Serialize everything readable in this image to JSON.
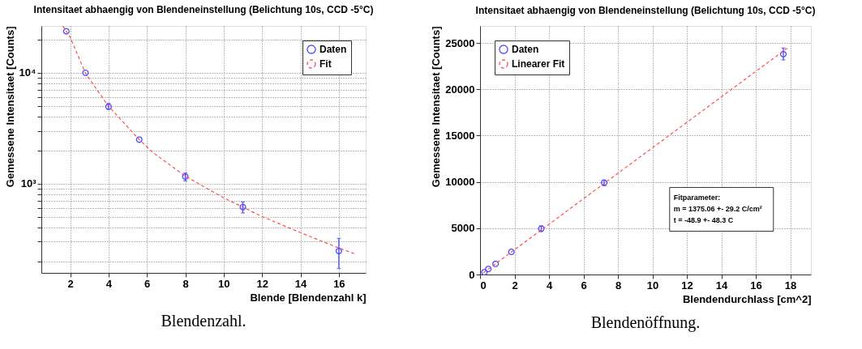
{
  "chart_data": [
    {
      "type": "scatter",
      "title": "Intensitaet abhaengig von Blendeneinstellung (Belichtung 10s, CCD -5°C)",
      "xlabel": "Blende [Blendenzahl k]",
      "ylabel": "Gemessene Intensitaet [Counts]",
      "xlim": [
        0.5,
        17.4
      ],
      "xticks": [
        2,
        4,
        6,
        8,
        10,
        12,
        14,
        16
      ],
      "ylim": [
        157,
        26500
      ],
      "log": "y",
      "yticks": [
        {
          "value": 200,
          "label": null
        },
        {
          "value": 300,
          "label": null
        },
        {
          "value": 400,
          "label": null
        },
        {
          "value": 500,
          "label": null
        },
        {
          "value": 600,
          "label": null
        },
        {
          "value": 700,
          "label": null
        },
        {
          "value": 800,
          "label": null
        },
        {
          "value": 900,
          "label": null
        },
        {
          "value": 1000,
          "label": "10³"
        },
        {
          "value": 2000,
          "label": null
        },
        {
          "value": 3000,
          "label": null
        },
        {
          "value": 4000,
          "label": null
        },
        {
          "value": 5000,
          "label": null
        },
        {
          "value": 6000,
          "label": null
        },
        {
          "value": 7000,
          "label": null
        },
        {
          "value": 8000,
          "label": null
        },
        {
          "value": 9000,
          "label": null
        },
        {
          "value": 10000,
          "label": "10⁴"
        },
        {
          "value": 20000,
          "label": null
        }
      ],
      "grid": true,
      "legend": "top right",
      "series": [
        {
          "name": "Daten",
          "marker": "circle",
          "color": "#4b4bff",
          "line_style": "solid",
          "x": [
            1.8,
            2.8,
            4,
            5.6,
            8,
            11,
            16
          ],
          "values": [
            23700,
            10000,
            4950,
            2500,
            1160,
            615,
            247
          ],
          "errors": [
            null,
            null,
            [
              4700,
              5300
            ],
            null,
            [
              1060,
              1250
            ],
            [
              545,
              685
            ],
            [
              172,
              321
            ]
          ]
        },
        {
          "name": "Fit",
          "type": "line",
          "color": "#ff5050",
          "line_style": "dashed",
          "x": [
            1.62,
            2,
            2.8,
            4,
            5.6,
            6.28,
            8,
            10,
            12,
            14,
            16,
            16.8
          ],
          "values": [
            26500,
            21000,
            9900,
            5000,
            2500,
            1930,
            1170,
            746,
            506,
            362,
            263,
            234
          ]
        }
      ],
      "annotations": [
        "Blendenzahl."
      ]
    },
    {
      "type": "scatter",
      "title": "Intensitaet abhaengig von Blendeneinstellung (Belichtung 10s, CCD -5°C)",
      "xlabel": "Blendendurchlass [cm^2]",
      "ylabel": "Gemessene Intensitaet [Counts]",
      "xlim": [
        0,
        19.2
      ],
      "xticks": [
        0,
        2,
        4,
        6,
        8,
        10,
        12,
        14,
        16,
        18
      ],
      "ylim": [
        0,
        26850
      ],
      "yticks": [
        0,
        5000,
        10000,
        15000,
        20000,
        25000
      ],
      "grid": true,
      "legend": "top left",
      "series": [
        {
          "name": "Daten",
          "marker": "circle",
          "color": "#4b4bff",
          "line_style": "solid",
          "x": [
            0.25,
            0.48,
            0.9,
            1.82,
            3.55,
            7.2,
            17.6
          ],
          "values": [
            250,
            600,
            1150,
            2450,
            4950,
            9900,
            23800
          ],
          "errors": [
            null,
            null,
            null,
            null,
            300,
            300,
            [
              23180,
              24460
            ]
          ]
        },
        {
          "name": "Linearer Fit",
          "type": "line",
          "color": "#ff5050",
          "line_style": "dashed",
          "x": [
            0.2,
            17.9
          ],
          "values": [
            200,
            24550
          ]
        }
      ],
      "annotations": [
        "Fitparameter:",
        "m = 1375.06 +- 29.2 C/cm²",
        "t   = -48.9     +- 48.3 C",
        "Blendenöffnung."
      ]
    }
  ]
}
